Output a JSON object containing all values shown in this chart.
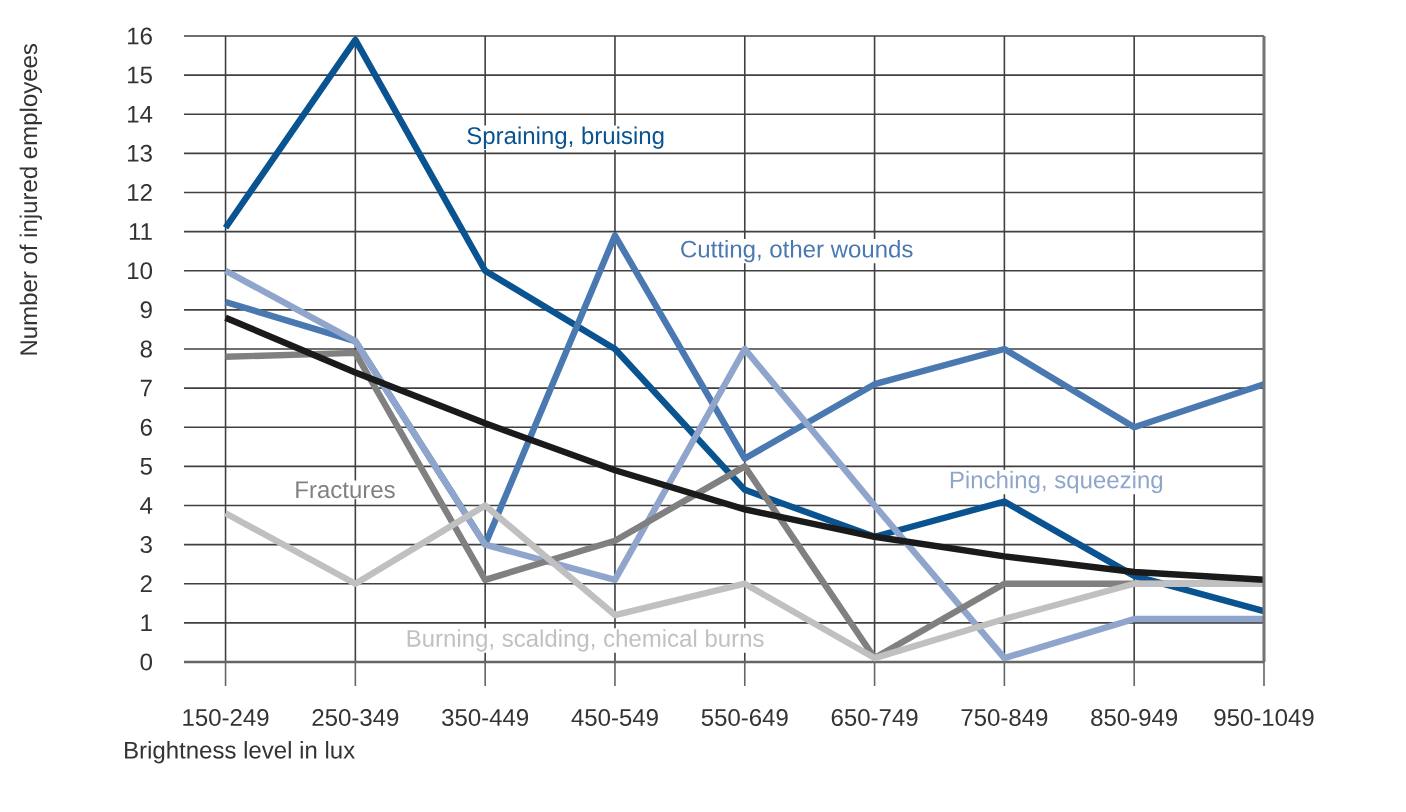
{
  "chart_data": {
    "type": "line",
    "xlabel": "Brightness level in lux",
    "ylabel": "Number of injured employees",
    "categories": [
      "150-249",
      "250-349",
      "350-449",
      "450-549",
      "550-649",
      "650-749",
      "750-849",
      "850-949",
      "950-1049"
    ],
    "ylim": [
      0,
      16
    ],
    "yticks": [
      0,
      1,
      2,
      3,
      4,
      5,
      6,
      7,
      8,
      9,
      10,
      11,
      12,
      13,
      14,
      15,
      16
    ],
    "grid": true,
    "legend": false,
    "line_style": "solid",
    "marker": "none",
    "series": [
      {
        "name": "Spraining, bruising",
        "color": "#0a5391",
        "values": [
          11.1,
          15.9,
          10,
          8,
          4.4,
          3.2,
          4.1,
          2.2,
          1.3
        ]
      },
      {
        "name": "Cutting, other wounds",
        "color": "#4a78b0",
        "values": [
          9.2,
          8.2,
          3,
          10.9,
          5.2,
          7.1,
          8,
          6,
          7.1
        ]
      },
      {
        "name": "Pinching, squeezing",
        "color": "#8fa5cc",
        "values": [
          10,
          8.2,
          3,
          2.1,
          8,
          4,
          0.1,
          1.1,
          1.1
        ]
      },
      {
        "name": "Fractures",
        "color": "#808080",
        "values": [
          7.8,
          7.9,
          2.1,
          3.1,
          5,
          0.1,
          2,
          2,
          2
        ]
      },
      {
        "name": "Burning, scalding, chemical burns",
        "color": "#c0c0c0",
        "values": [
          3.8,
          2,
          4,
          1.2,
          2,
          0.1,
          1.1,
          2,
          2
        ]
      },
      {
        "color": "#1a1a1a",
        "values": [
          8.8,
          7.4,
          6.1,
          4.9,
          3.9,
          3.2,
          2.7,
          2.3,
          2.1
        ]
      }
    ]
  }
}
